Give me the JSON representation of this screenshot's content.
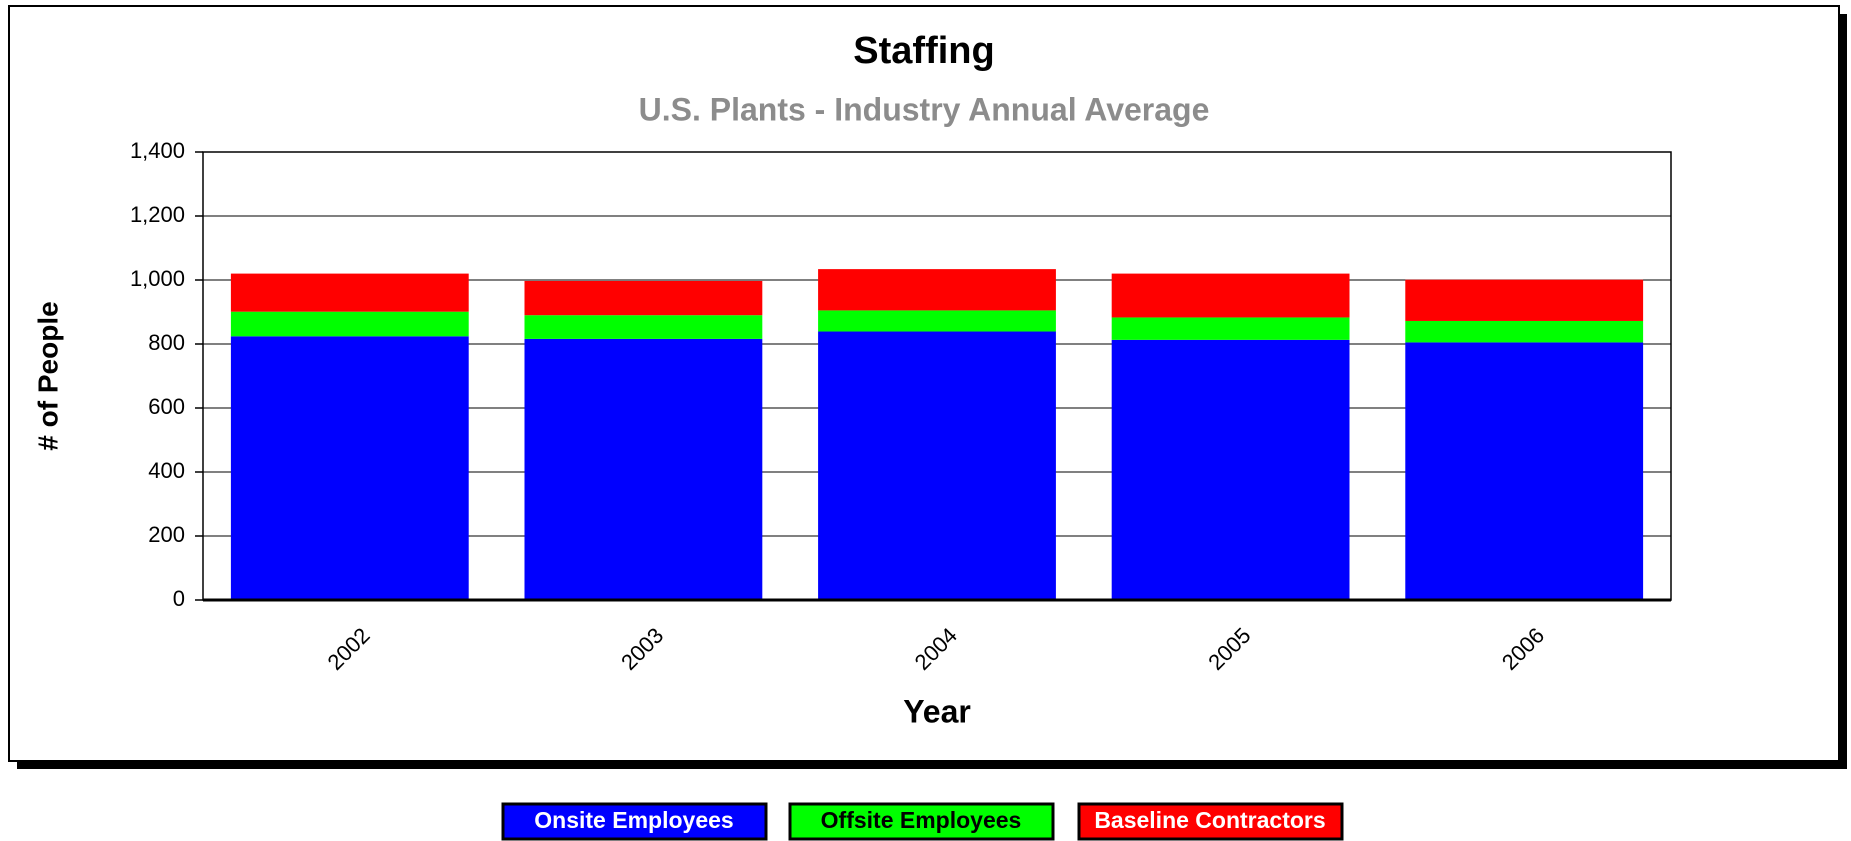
{
  "chart_data": {
    "type": "stacked_bar",
    "title": "Staffing",
    "subtitle": "U.S. Plants - Industry Annual Average",
    "x_label": "Year",
    "y_label": "# of People",
    "categories": [
      "2002",
      "2003",
      "2004",
      "2005",
      "2006"
    ],
    "series": [
      {
        "name": "Onsite Employees",
        "color": "#0000ff",
        "values": [
          824,
          816,
          839,
          813,
          805
        ]
      },
      {
        "name": "Offsite Employees",
        "color": "#00ff00",
        "values": [
          77,
          74,
          66,
          70,
          67
        ]
      },
      {
        "name": "Baseline Contractors",
        "color": "#ff0000",
        "values": [
          119,
          107,
          129,
          137,
          129
        ]
      }
    ],
    "ylim": [
      0,
      1400
    ],
    "yticks": [
      0,
      200,
      400,
      600,
      800,
      {
        "value": 1000,
        "label": "1,000"
      },
      {
        "value": 1200,
        "label": "1,200"
      },
      {
        "value": 1400,
        "label": "1,400"
      }
    ],
    "grid": true,
    "legend": "bottom"
  }
}
